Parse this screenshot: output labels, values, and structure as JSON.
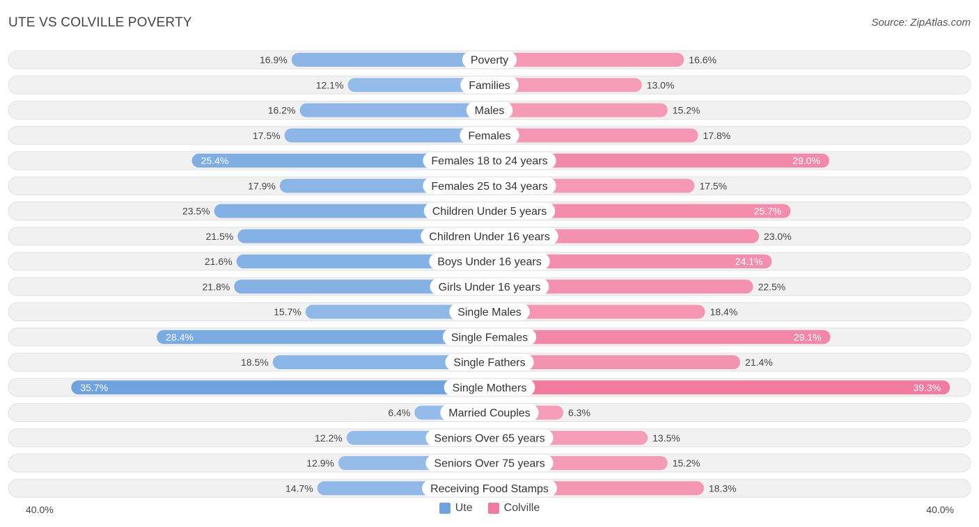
{
  "header": {
    "title": "UTE VS COLVILLE POVERTY",
    "source": "Source: ZipAtlas.com"
  },
  "colors": {
    "ute": "#6ea3e0",
    "ute_light": "#a9c8ee",
    "colville": "#f27aa0",
    "colville_light": "#f7aec6"
  },
  "axis": {
    "left_label": "40.0%",
    "right_label": "40.0%"
  },
  "chart_data": {
    "type": "bar",
    "title": "UTE VS COLVILLE POVERTY",
    "orientation": "horizontal-diverging",
    "xlim": [
      -40,
      40
    ],
    "categories": [
      "Poverty",
      "Families",
      "Males",
      "Females",
      "Females 18 to 24 years",
      "Females 25 to 34 years",
      "Children Under 5 years",
      "Children Under 16 years",
      "Boys Under 16 years",
      "Girls Under 16 years",
      "Single Males",
      "Single Females",
      "Single Fathers",
      "Single Mothers",
      "Married Couples",
      "Seniors Over 65 years",
      "Seniors Over 75 years",
      "Receiving Food Stamps"
    ],
    "series": [
      {
        "name": "Ute",
        "values": [
          16.9,
          12.1,
          16.2,
          17.5,
          25.4,
          17.9,
          23.5,
          21.5,
          21.6,
          21.8,
          15.7,
          28.4,
          18.5,
          35.7,
          6.4,
          12.2,
          12.9,
          14.7
        ],
        "labels": [
          "16.9%",
          "12.1%",
          "16.2%",
          "17.5%",
          "25.4%",
          "17.9%",
          "23.5%",
          "21.5%",
          "21.6%",
          "21.8%",
          "15.7%",
          "28.4%",
          "18.5%",
          "35.7%",
          "6.4%",
          "12.2%",
          "12.9%",
          "14.7%"
        ]
      },
      {
        "name": "Colville",
        "values": [
          16.6,
          13.0,
          15.2,
          17.8,
          29.0,
          17.5,
          25.7,
          23.0,
          24.1,
          22.5,
          18.4,
          29.1,
          21.4,
          39.3,
          6.3,
          13.5,
          15.2,
          18.3
        ],
        "labels": [
          "16.6%",
          "13.0%",
          "15.2%",
          "17.8%",
          "29.0%",
          "17.5%",
          "25.7%",
          "23.0%",
          "24.1%",
          "22.5%",
          "18.4%",
          "29.1%",
          "21.4%",
          "39.3%",
          "6.3%",
          "13.5%",
          "15.2%",
          "18.3%"
        ]
      }
    ],
    "legend": [
      "Ute",
      "Colville"
    ],
    "legend_position": "bottom-center"
  }
}
